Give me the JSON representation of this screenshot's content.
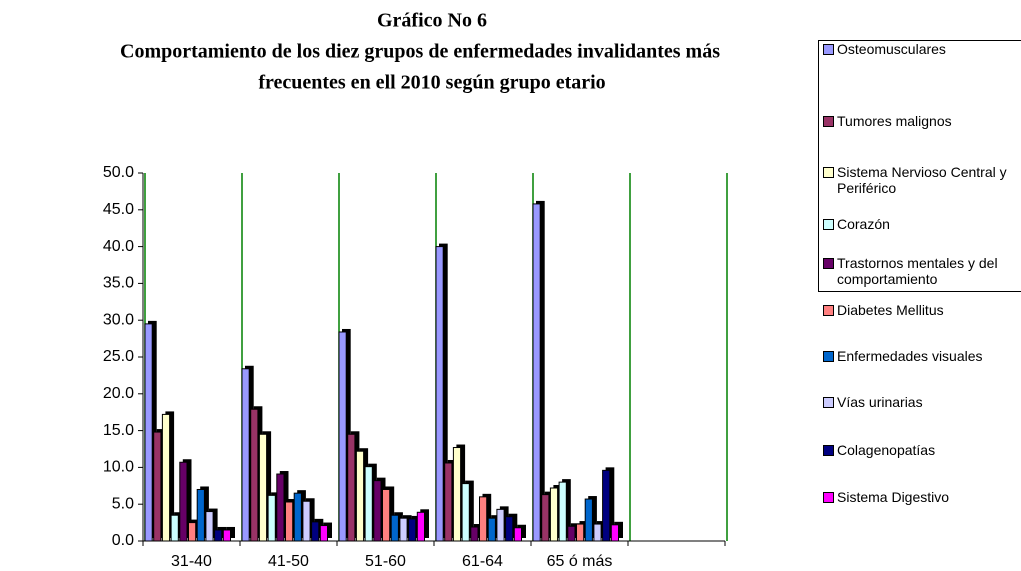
{
  "chart_data": {
    "type": "bar",
    "title": "Gráfico No 6",
    "subtitle": [
      "Comportamiento de los diez  grupos de enfermedades invalidantes más",
      "frecuentes en ell 2010 según grupo etario"
    ],
    "categories": [
      "31-40",
      "41-50",
      "51-60",
      "61-64",
      "65 ó más",
      null
    ],
    "series": [
      {
        "name": "Osteomusculares",
        "color": "#9999ff",
        "values": [
          29.5,
          23.4,
          28.4,
          40.0,
          45.8,
          null
        ]
      },
      {
        "name": "Tumores malignos",
        "color": "#993366",
        "values": [
          14.8,
          17.9,
          14.5,
          10.6,
          6.3,
          null
        ]
      },
      {
        "name": "Sistema Nervioso Central y Periférico",
        "color": "#ffffcc",
        "values": [
          17.2,
          14.5,
          12.2,
          12.7,
          7.2,
          null
        ]
      },
      {
        "name": "Corazón",
        "color": "#ccffff",
        "values": [
          3.5,
          6.2,
          10.1,
          7.8,
          8.0,
          null
        ]
      },
      {
        "name": "Trastornos mentales y del comportamiento",
        "color": "#660066",
        "values": [
          10.7,
          9.1,
          8.2,
          1.9,
          2.0,
          null
        ]
      },
      {
        "name": "Diabetes Mellitus",
        "color": "#ff8080",
        "values": [
          2.5,
          5.3,
          7.0,
          6.0,
          2.3,
          null
        ]
      },
      {
        "name": "Enfermedades visuales",
        "color": "#0066cc",
        "values": [
          7.0,
          6.5,
          3.5,
          3.1,
          5.7,
          null
        ]
      },
      {
        "name": "Vías urinarias",
        "color": "#ccccff",
        "values": [
          4.0,
          5.4,
          3.1,
          4.3,
          2.3,
          null
        ]
      },
      {
        "name": "Colagenopatías",
        "color": "#000080",
        "values": [
          1.5,
          2.6,
          3.0,
          3.3,
          9.6,
          null
        ]
      },
      {
        "name": "Sistema Digestivo",
        "color": "#ff00ff",
        "values": [
          1.5,
          2.1,
          3.9,
          1.8,
          2.2,
          null
        ]
      }
    ],
    "ylim": [
      0,
      50
    ],
    "yticks": [
      {
        "value": 0,
        "label": "0.0"
      },
      {
        "value": 5,
        "label": "5.0"
      },
      {
        "value": 10,
        "label": "10.0"
      },
      {
        "value": 15,
        "label": "15.0"
      },
      {
        "value": 20,
        "label": "20.0"
      },
      {
        "value": 25,
        "label": "25.0"
      },
      {
        "value": 30,
        "label": "30.0"
      },
      {
        "value": 35,
        "label": "35.0"
      },
      {
        "value": 40,
        "label": "40.0"
      },
      {
        "value": 45,
        "label": "45.0"
      },
      {
        "value": 50,
        "label": "50.0"
      }
    ],
    "grid": true,
    "grid_color": "#008000",
    "legend": "right"
  }
}
